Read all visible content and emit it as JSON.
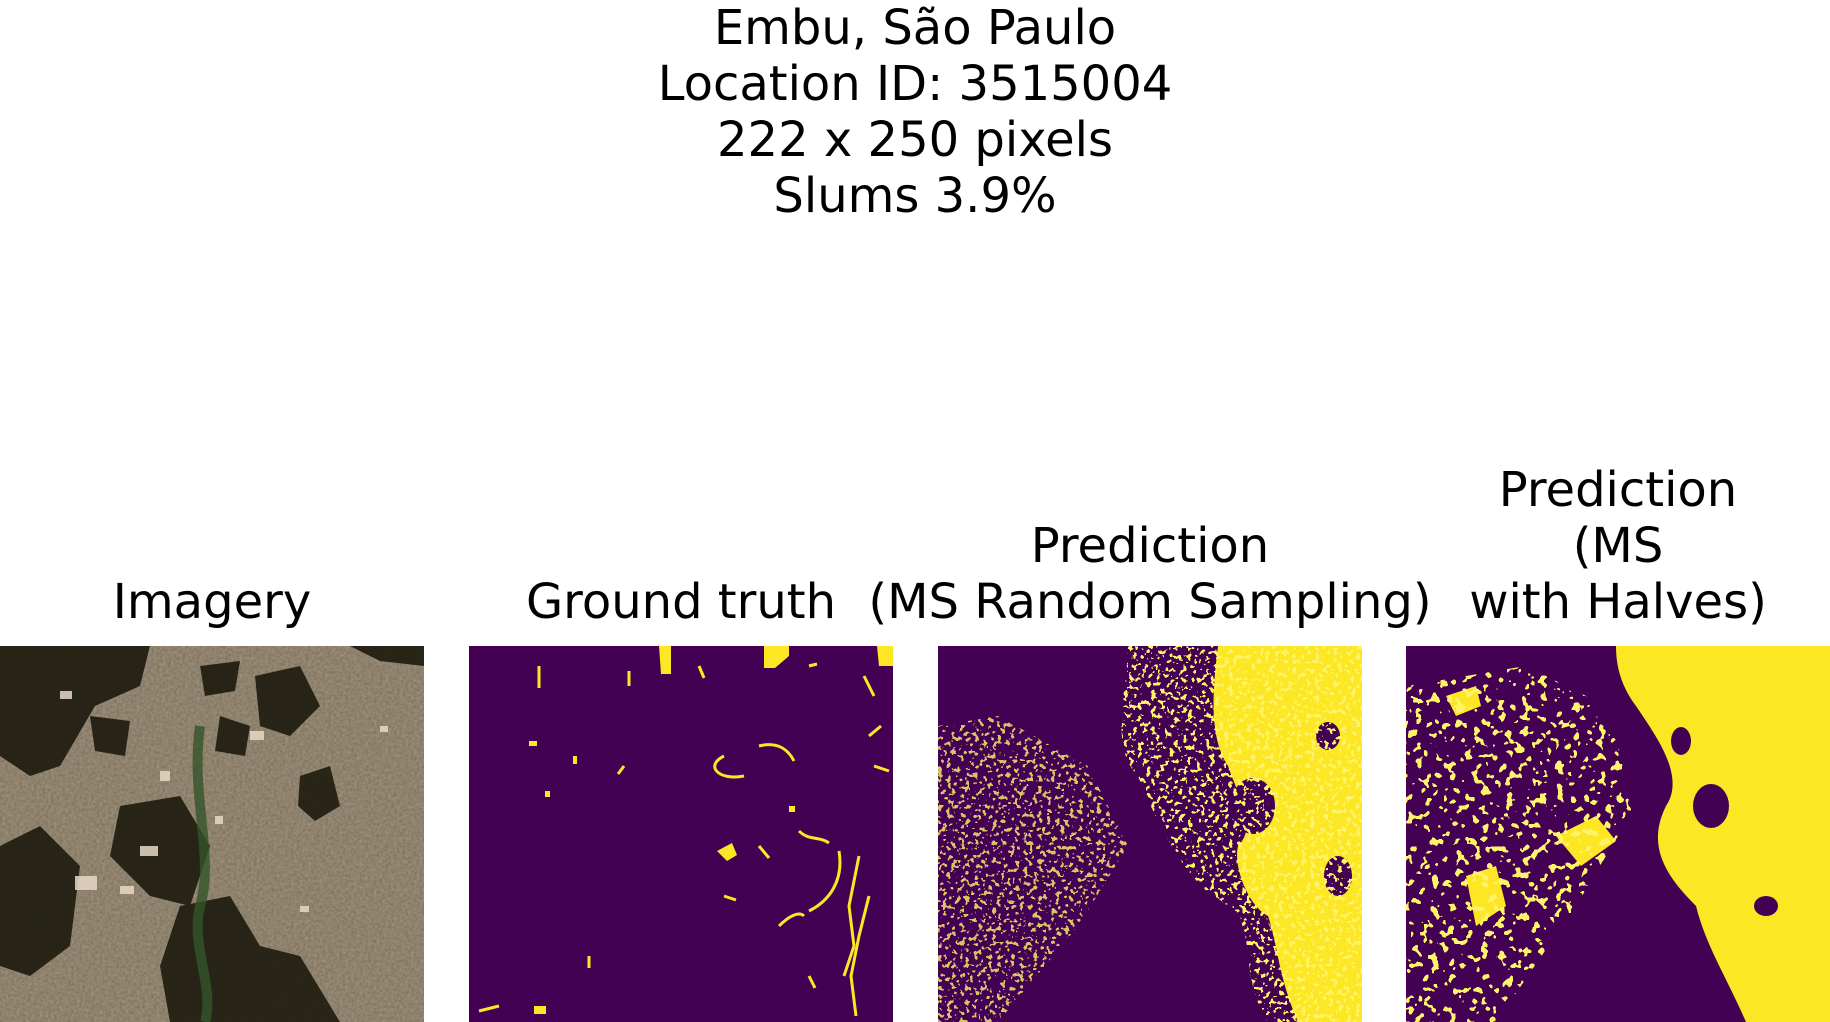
{
  "figure": {
    "suptitle_lines": [
      "Embu, São Paulo",
      "Location ID: 3515004",
      "222 x 250 pixels",
      "Slums 3.9%"
    ],
    "panels": [
      {
        "title": "Imagery"
      },
      {
        "title": "Ground truth"
      },
      {
        "title_line1": "Prediction",
        "title_line2": "(MS Random Sampling)"
      },
      {
        "title_lines": [
          "Prediction",
          "(MS",
          "with Halves)"
        ]
      }
    ],
    "colors": {
      "background_class": "#440154",
      "slum_class": "#fde725",
      "imagery_base": "#6e624c"
    },
    "icons": []
  }
}
